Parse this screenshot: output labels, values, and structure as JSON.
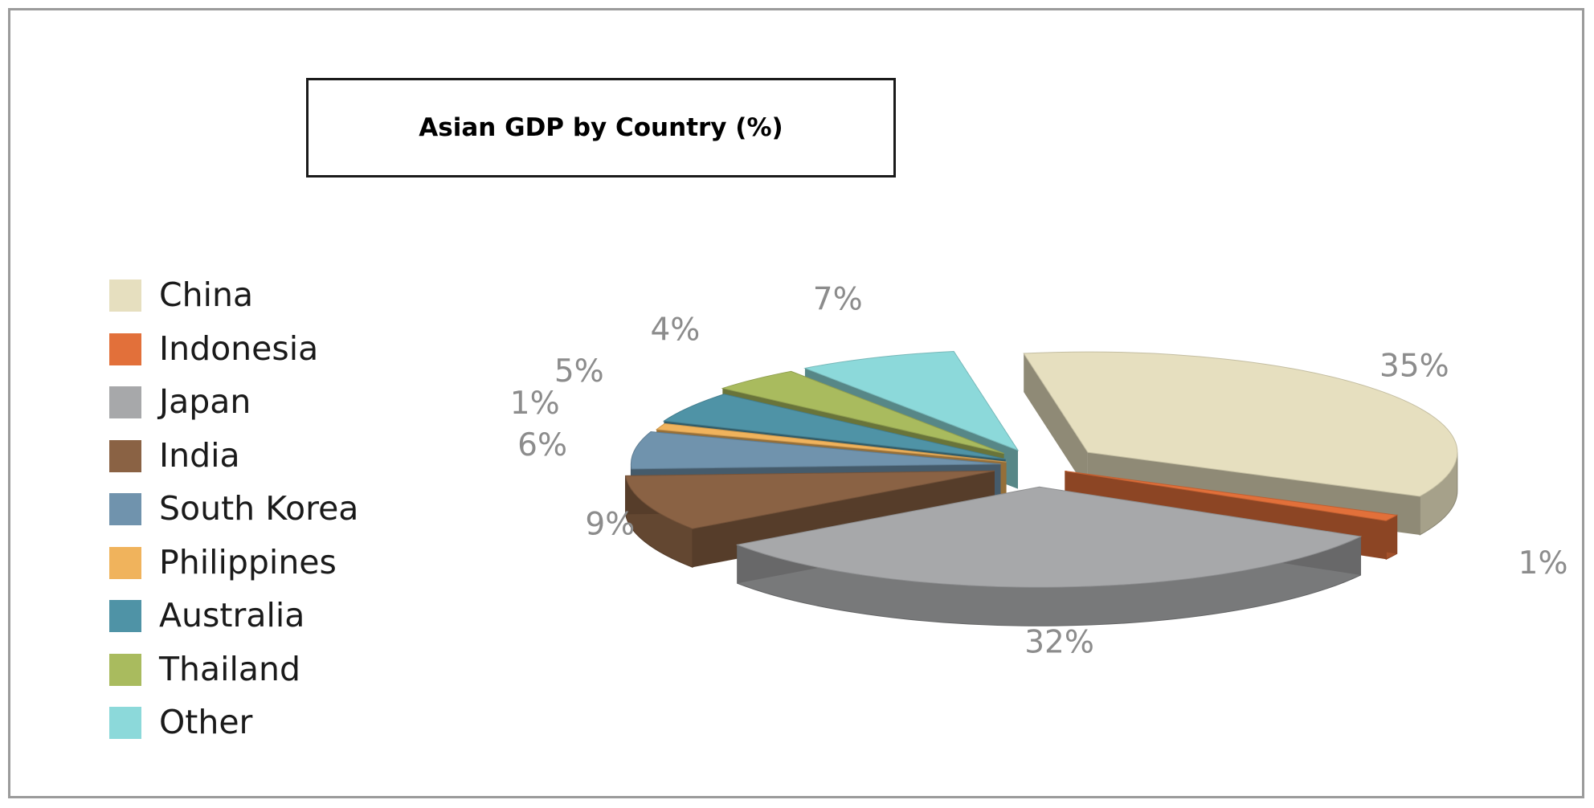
{
  "chart_data": {
    "type": "pie",
    "title": "Asian GDP by Country (%)",
    "categories": [
      "China",
      "Indonesia",
      "Japan",
      "India",
      "South Korea",
      "Philippines",
      "Australia",
      "Thailand",
      "Other"
    ],
    "values": [
      35,
      1,
      32,
      9,
      6,
      1,
      5,
      4,
      7
    ],
    "value_labels": [
      "35%",
      "1%",
      "32%",
      "9%",
      "6%",
      "1%",
      "5%",
      "4%",
      "7%"
    ],
    "colors": [
      "#e6dfbf",
      "#e2703a",
      "#a7a8aa",
      "#8a6244",
      "#7093ad",
      "#f0b35c",
      "#4f93a6",
      "#a9bb5e",
      "#8cd9da"
    ],
    "legend_position": "left",
    "style": "3d-exploded"
  }
}
